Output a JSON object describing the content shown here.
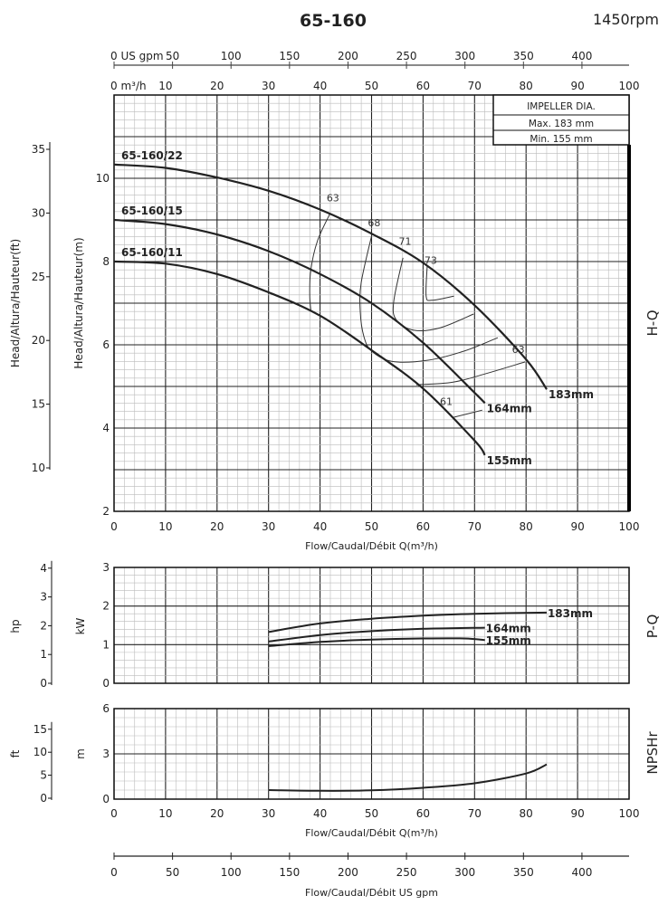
{
  "title": "65-160",
  "speed": "1450rpm",
  "impeller_box": {
    "heading": "IMPELLER DIA.",
    "max": "Max.  183  mm",
    "min": "Min.   155  mm"
  },
  "side_labels": {
    "hq": "H-Q",
    "pq": "P-Q",
    "npsh": "NPSHr"
  },
  "chart_data": [
    {
      "type": "line",
      "name": "H-Q",
      "xlabel": "Flow/Caudal/Débit Q(m³/h)",
      "ylabel": "Head/Altura/Hauteur(m)",
      "ylabel_secondary": "Head/Altura/Hauteur(ft)",
      "xlim": [
        0,
        100
      ],
      "ylim": [
        2,
        12
      ],
      "x_ticks": [
        "0",
        "10",
        "20",
        "30",
        "40",
        "50",
        "60",
        "70",
        "80",
        "90",
        "100"
      ],
      "top_x_ticks": [
        "0  m³/h",
        "10",
        "20",
        "30",
        "40",
        "50",
        "60",
        "70",
        "80",
        "90",
        "100"
      ],
      "top_gpm_ticks": [
        "0 US gpm",
        "50",
        "100",
        "150",
        "200",
        "250",
        "300",
        "350",
        "400"
      ],
      "y_ticks": [
        "2",
        "4",
        "6",
        "8",
        "10"
      ],
      "y_ticks_ft": [
        "10",
        "15",
        "20",
        "25",
        "30",
        "35"
      ],
      "grid": true,
      "series": [
        {
          "name": "65-160/22",
          "end_label": "183mm",
          "points": [
            [
              0,
              10.33
            ],
            [
              10,
              10.25
            ],
            [
              20,
              10.02
            ],
            [
              30,
              9.7
            ],
            [
              40,
              9.25
            ],
            [
              50,
              8.67
            ],
            [
              60,
              7.97
            ],
            [
              70,
              6.95
            ],
            [
              80,
              5.65
            ],
            [
              84,
              4.93
            ]
          ]
        },
        {
          "name": "65-160/15",
          "end_label": "164mm",
          "points": [
            [
              0,
              9.0
            ],
            [
              10,
              8.9
            ],
            [
              20,
              8.65
            ],
            [
              30,
              8.25
            ],
            [
              40,
              7.7
            ],
            [
              50,
              7.0
            ],
            [
              60,
              6.05
            ],
            [
              70,
              4.85
            ],
            [
              72,
              4.6
            ]
          ]
        },
        {
          "name": "65-160/11",
          "end_label": "155mm",
          "points": [
            [
              0,
              8.0
            ],
            [
              10,
              7.95
            ],
            [
              20,
              7.7
            ],
            [
              30,
              7.26
            ],
            [
              40,
              6.7
            ],
            [
              50,
              5.87
            ],
            [
              60,
              4.95
            ],
            [
              70,
              3.7
            ],
            [
              72,
              3.35
            ]
          ]
        }
      ],
      "efficiency": [
        {
          "label": "63",
          "label_at": [
            42.5,
            9.45
          ],
          "points": [
            [
              42,
              9.17
            ],
            [
              39.5,
              8.5
            ],
            [
              38.2,
              7.8
            ],
            [
              38,
              7.2
            ],
            [
              38.2,
              6.83
            ]
          ]
        },
        {
          "label": "68",
          "label_at": [
            50.5,
            8.85
          ],
          "points": [
            [
              50.1,
              8.67
            ],
            [
              48,
              7.5
            ],
            [
              47.8,
              6.8
            ],
            [
              48.5,
              6.2
            ],
            [
              50,
              5.85
            ],
            [
              54,
              5.6
            ],
            [
              61,
              5.63
            ],
            [
              68,
              5.85
            ],
            [
              74.5,
              6.17
            ]
          ]
        },
        {
          "label": "71",
          "label_at": [
            56.5,
            8.4
          ],
          "points": [
            [
              56.1,
              8.09
            ],
            [
              54.3,
              7.04
            ],
            [
              54.8,
              6.6
            ],
            [
              58.2,
              6.35
            ],
            [
              63.4,
              6.41
            ],
            [
              69.8,
              6.74
            ]
          ]
        },
        {
          "label": "73",
          "label_at": [
            61.5,
            7.95
          ],
          "points": [
            [
              60.8,
              7.91
            ],
            [
              60.6,
              7.17
            ],
            [
              61.7,
              7.07
            ],
            [
              66,
              7.17
            ]
          ]
        },
        {
          "label": "63",
          "label_at": [
            78.5,
            5.8
          ],
          "points": [
            [
              58.7,
              5.04
            ],
            [
              65.7,
              5.1
            ],
            [
              72,
              5.3
            ],
            [
              79.8,
              5.59
            ]
          ]
        },
        {
          "label": "61",
          "label_at": [
            64.5,
            4.55
          ],
          "points": [
            [
              66,
              4.26
            ],
            [
              71.5,
              4.43
            ]
          ]
        }
      ]
    },
    {
      "type": "line",
      "name": "P-Q",
      "ylabel": "kW",
      "ylabel_secondary": "hp",
      "xlim": [
        0,
        100
      ],
      "ylim": [
        0,
        3
      ],
      "y_ticks": [
        "0",
        "1",
        "2",
        "3"
      ],
      "y_ticks_hp": [
        "0",
        "1",
        "2",
        "3",
        "4"
      ],
      "series": [
        {
          "name": "183mm",
          "points": [
            [
              30,
              1.33
            ],
            [
              40,
              1.55
            ],
            [
              50,
              1.67
            ],
            [
              60,
              1.75
            ],
            [
              70,
              1.8
            ],
            [
              84,
              1.83
            ]
          ]
        },
        {
          "name": "164mm",
          "points": [
            [
              30,
              1.08
            ],
            [
              40,
              1.25
            ],
            [
              50,
              1.35
            ],
            [
              60,
              1.41
            ],
            [
              72,
              1.44
            ]
          ]
        },
        {
          "name": "155mm",
          "points": [
            [
              30,
              0.96
            ],
            [
              40,
              1.07
            ],
            [
              50,
              1.13
            ],
            [
              60,
              1.16
            ],
            [
              68,
              1.16
            ],
            [
              72,
              1.12
            ]
          ]
        }
      ]
    },
    {
      "type": "line",
      "name": "NPSHr",
      "ylabel": "m",
      "ylabel_secondary": "ft",
      "xlabel": "Flow/Caudal/Débit Q(m³/h)",
      "xlim": [
        0,
        100
      ],
      "ylim": [
        0,
        6
      ],
      "x_ticks": [
        "0",
        "10",
        "20",
        "30",
        "40",
        "50",
        "60",
        "70",
        "80",
        "90",
        "100"
      ],
      "y_ticks": [
        "0",
        "3",
        "6"
      ],
      "y_ticks_ft": [
        "0",
        "5",
        "10",
        "15"
      ],
      "series": [
        {
          "name": "NPSHr",
          "points": [
            [
              30,
              0.6
            ],
            [
              40,
              0.55
            ],
            [
              50,
              0.58
            ],
            [
              60,
              0.75
            ],
            [
              70,
              1.05
            ],
            [
              80,
              1.7
            ],
            [
              84,
              2.3
            ]
          ]
        }
      ]
    }
  ],
  "bottom_axis": {
    "xlabel": "Flow/Caudal/Débit   US gpm",
    "ticks": [
      "0",
      "50",
      "100",
      "150",
      "200",
      "250",
      "300",
      "350",
      "400"
    ]
  }
}
